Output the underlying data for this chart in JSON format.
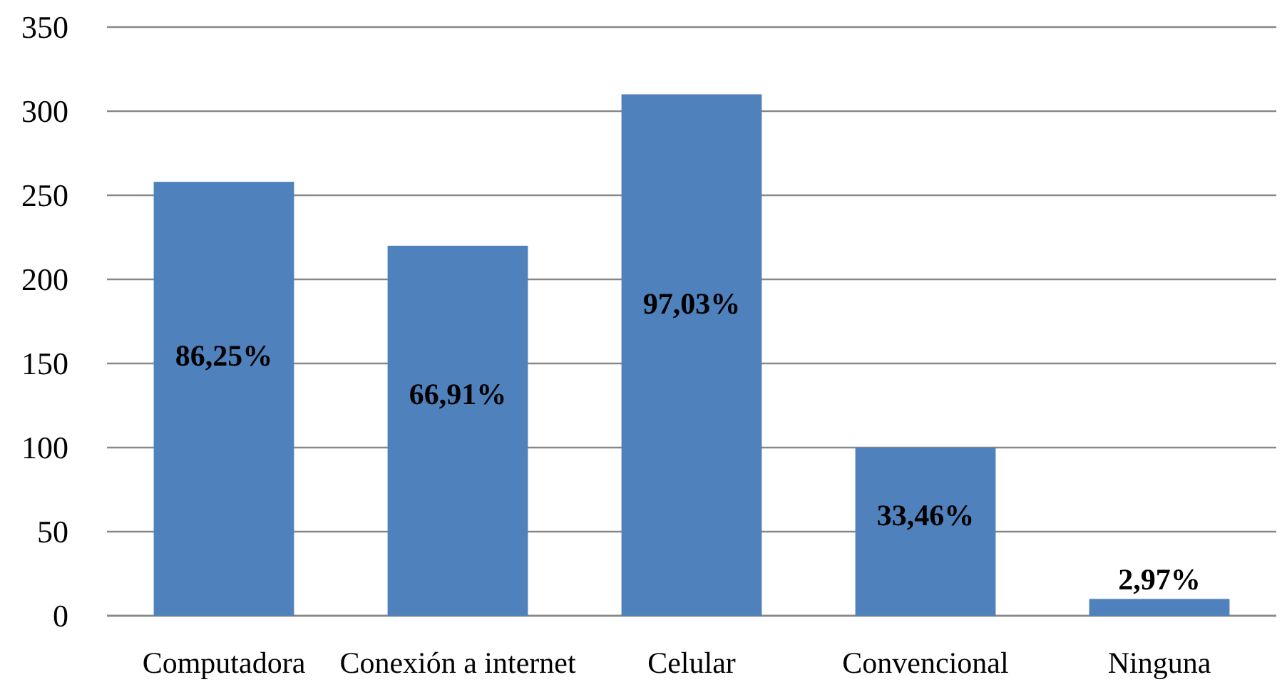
{
  "chart_data": {
    "type": "bar",
    "categories": [
      "Computadora",
      "Conexión a internet",
      "Celular",
      "Convencional",
      "Ninguna"
    ],
    "values": [
      258,
      220,
      310,
      100,
      10
    ],
    "annotations": [
      "86,25%",
      "66,91%",
      "97,03%",
      "33,46%",
      "2,97%"
    ],
    "color": "#4f81bd",
    "ylim": [
      0,
      350
    ],
    "yticks": [
      0,
      50,
      100,
      150,
      200,
      250,
      300,
      350
    ],
    "grid": "y"
  }
}
